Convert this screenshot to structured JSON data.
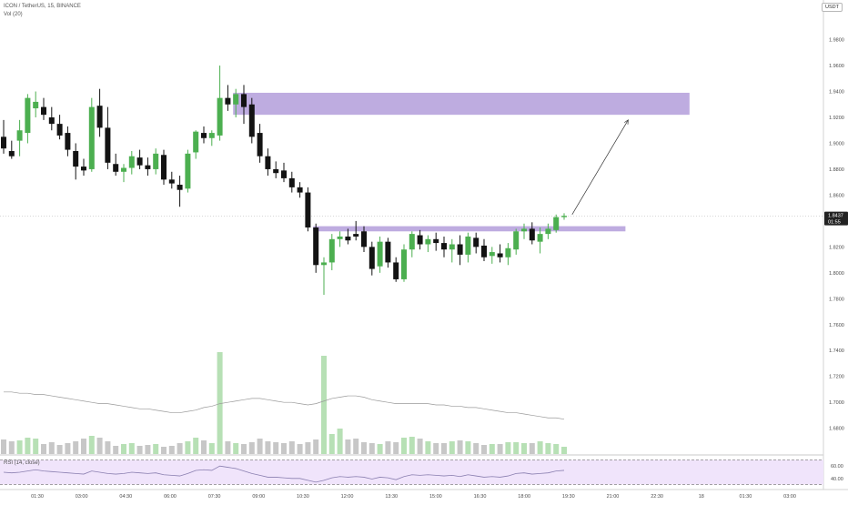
{
  "header": {
    "symbol_line": "ICON / TetherUS, 15, BINANCE",
    "volume_label": "Vol (20)",
    "rsi_label": "RSI (14, close)",
    "currency_badge": "USDT"
  },
  "colors": {
    "up": "#4caf50",
    "down": "#131313",
    "volume_up": "#b7e0b5",
    "volume_down": "#c7c7c7",
    "zone": "#b39ddb",
    "rsi_band": "#f0e4fb",
    "rsi_line": "#8a7fb0",
    "vol_ma": "#9a9a9a"
  },
  "price_axis": {
    "ticks": [
      "1.9800",
      "1.9600",
      "1.9400",
      "1.9200",
      "1.9000",
      "1.8800",
      "1.8600",
      "1.8400",
      "1.8200",
      "1.8000",
      "1.7800",
      "1.7600",
      "1.7400",
      "1.7200",
      "1.7000",
      "1.6800"
    ],
    "last_price": "1.8437",
    "countdown": "01:55"
  },
  "rsi_axis": {
    "ticks": [
      "60.00",
      "40.00"
    ]
  },
  "time_axis": {
    "ticks": [
      "01:30",
      "03:00",
      "04:30",
      "06:00",
      "07:30",
      "09:00",
      "10:30",
      "12:00",
      "13:30",
      "15:00",
      "16:30",
      "18:00",
      "19:30",
      "21:00",
      "22:30",
      "18",
      "01:30",
      "03:00"
    ]
  },
  "chart_data": {
    "type": "candlestick",
    "title": "ICON / TetherUS, 15, BINANCE",
    "interval": "15",
    "ylim": [
      1.665,
      2.005
    ],
    "candles": [
      {
        "o": 1.905,
        "h": 1.918,
        "l": 1.892,
        "c": 1.896
      },
      {
        "o": 1.894,
        "h": 1.902,
        "l": 1.888,
        "c": 1.89
      },
      {
        "o": 1.902,
        "h": 1.918,
        "l": 1.89,
        "c": 1.91
      },
      {
        "o": 1.908,
        "h": 1.938,
        "l": 1.9,
        "c": 1.935
      },
      {
        "o": 1.927,
        "h": 1.94,
        "l": 1.92,
        "c": 1.932
      },
      {
        "o": 1.928,
        "h": 1.935,
        "l": 1.918,
        "c": 1.922
      },
      {
        "o": 1.92,
        "h": 1.928,
        "l": 1.91,
        "c": 1.915
      },
      {
        "o": 1.915,
        "h": 1.922,
        "l": 1.903,
        "c": 1.906
      },
      {
        "o": 1.908,
        "h": 1.913,
        "l": 1.89,
        "c": 1.895
      },
      {
        "o": 1.894,
        "h": 1.9,
        "l": 1.872,
        "c": 1.882
      },
      {
        "o": 1.882,
        "h": 1.888,
        "l": 1.875,
        "c": 1.879
      },
      {
        "o": 1.88,
        "h": 1.935,
        "l": 1.878,
        "c": 1.928
      },
      {
        "o": 1.929,
        "h": 1.942,
        "l": 1.905,
        "c": 1.912
      },
      {
        "o": 1.912,
        "h": 1.928,
        "l": 1.88,
        "c": 1.885
      },
      {
        "o": 1.884,
        "h": 1.892,
        "l": 1.875,
        "c": 1.878
      },
      {
        "o": 1.878,
        "h": 1.884,
        "l": 1.87,
        "c": 1.881
      },
      {
        "o": 1.881,
        "h": 1.894,
        "l": 1.876,
        "c": 1.89
      },
      {
        "o": 1.889,
        "h": 1.895,
        "l": 1.88,
        "c": 1.883
      },
      {
        "o": 1.883,
        "h": 1.889,
        "l": 1.875,
        "c": 1.88
      },
      {
        "o": 1.88,
        "h": 1.896,
        "l": 1.876,
        "c": 1.892
      },
      {
        "o": 1.891,
        "h": 1.895,
        "l": 1.868,
        "c": 1.872
      },
      {
        "o": 1.872,
        "h": 1.878,
        "l": 1.865,
        "c": 1.869
      },
      {
        "o": 1.868,
        "h": 1.875,
        "l": 1.851,
        "c": 1.864
      },
      {
        "o": 1.865,
        "h": 1.895,
        "l": 1.862,
        "c": 1.892
      },
      {
        "o": 1.893,
        "h": 1.91,
        "l": 1.888,
        "c": 1.909
      },
      {
        "o": 1.908,
        "h": 1.913,
        "l": 1.9,
        "c": 1.904
      },
      {
        "o": 1.904,
        "h": 1.91,
        "l": 1.898,
        "c": 1.908
      },
      {
        "o": 1.906,
        "h": 1.96,
        "l": 1.902,
        "c": 1.935
      },
      {
        "o": 1.935,
        "h": 1.945,
        "l": 1.925,
        "c": 1.93
      },
      {
        "o": 1.93,
        "h": 1.942,
        "l": 1.92,
        "c": 1.938
      },
      {
        "o": 1.938,
        "h": 1.945,
        "l": 1.915,
        "c": 1.928
      },
      {
        "o": 1.93,
        "h": 1.935,
        "l": 1.9,
        "c": 1.905
      },
      {
        "o": 1.908,
        "h": 1.915,
        "l": 1.885,
        "c": 1.89
      },
      {
        "o": 1.89,
        "h": 1.896,
        "l": 1.875,
        "c": 1.88
      },
      {
        "o": 1.88,
        "h": 1.886,
        "l": 1.873,
        "c": 1.877
      },
      {
        "o": 1.879,
        "h": 1.885,
        "l": 1.87,
        "c": 1.873
      },
      {
        "o": 1.873,
        "h": 1.878,
        "l": 1.862,
        "c": 1.866
      },
      {
        "o": 1.866,
        "h": 1.87,
        "l": 1.858,
        "c": 1.862
      },
      {
        "o": 1.862,
        "h": 1.866,
        "l": 1.832,
        "c": 1.835
      },
      {
        "o": 1.835,
        "h": 1.838,
        "l": 1.8,
        "c": 1.806
      },
      {
        "o": 1.806,
        "h": 1.812,
        "l": 1.783,
        "c": 1.808
      },
      {
        "o": 1.808,
        "h": 1.83,
        "l": 1.802,
        "c": 1.826
      },
      {
        "o": 1.826,
        "h": 1.832,
        "l": 1.82,
        "c": 1.828
      },
      {
        "o": 1.828,
        "h": 1.834,
        "l": 1.822,
        "c": 1.825
      },
      {
        "o": 1.83,
        "h": 1.84,
        "l": 1.825,
        "c": 1.828
      },
      {
        "o": 1.832,
        "h": 1.836,
        "l": 1.816,
        "c": 1.82
      },
      {
        "o": 1.82,
        "h": 1.824,
        "l": 1.798,
        "c": 1.803
      },
      {
        "o": 1.805,
        "h": 1.828,
        "l": 1.8,
        "c": 1.824
      },
      {
        "o": 1.824,
        "h": 1.827,
        "l": 1.804,
        "c": 1.808
      },
      {
        "o": 1.808,
        "h": 1.812,
        "l": 1.793,
        "c": 1.795
      },
      {
        "o": 1.795,
        "h": 1.822,
        "l": 1.793,
        "c": 1.818
      },
      {
        "o": 1.818,
        "h": 1.832,
        "l": 1.812,
        "c": 1.83
      },
      {
        "o": 1.829,
        "h": 1.833,
        "l": 1.818,
        "c": 1.822
      },
      {
        "o": 1.822,
        "h": 1.829,
        "l": 1.816,
        "c": 1.826
      },
      {
        "o": 1.826,
        "h": 1.831,
        "l": 1.817,
        "c": 1.823
      },
      {
        "o": 1.823,
        "h": 1.828,
        "l": 1.812,
        "c": 1.818
      },
      {
        "o": 1.818,
        "h": 1.826,
        "l": 1.808,
        "c": 1.822
      },
      {
        "o": 1.822,
        "h": 1.829,
        "l": 1.806,
        "c": 1.814
      },
      {
        "o": 1.814,
        "h": 1.831,
        "l": 1.808,
        "c": 1.828
      },
      {
        "o": 1.827,
        "h": 1.831,
        "l": 1.815,
        "c": 1.82
      },
      {
        "o": 1.821,
        "h": 1.826,
        "l": 1.809,
        "c": 1.812
      },
      {
        "o": 1.813,
        "h": 1.82,
        "l": 1.807,
        "c": 1.816
      },
      {
        "o": 1.815,
        "h": 1.822,
        "l": 1.808,
        "c": 1.812
      },
      {
        "o": 1.812,
        "h": 1.823,
        "l": 1.806,
        "c": 1.819
      },
      {
        "o": 1.818,
        "h": 1.834,
        "l": 1.814,
        "c": 1.832
      },
      {
        "o": 1.832,
        "h": 1.838,
        "l": 1.826,
        "c": 1.834
      },
      {
        "o": 1.834,
        "h": 1.839,
        "l": 1.822,
        "c": 1.825
      },
      {
        "o": 1.824,
        "h": 1.835,
        "l": 1.815,
        "c": 1.83
      },
      {
        "o": 1.83,
        "h": 1.838,
        "l": 1.826,
        "c": 1.834
      },
      {
        "o": 1.833,
        "h": 1.845,
        "l": 1.831,
        "c": 1.843
      },
      {
        "o": 1.843,
        "h": 1.846,
        "l": 1.841,
        "c": 1.844
      }
    ],
    "volume_ma": [
      1.708,
      1.708,
      1.707,
      1.707,
      1.706,
      1.706,
      1.705,
      1.704,
      1.703,
      1.702,
      1.701,
      1.7,
      1.699,
      1.699,
      1.698,
      1.697,
      1.696,
      1.695,
      1.695,
      1.694,
      1.693,
      1.692,
      1.692,
      1.693,
      1.694,
      1.696,
      1.697,
      1.699,
      1.7,
      1.701,
      1.702,
      1.703,
      1.703,
      1.702,
      1.701,
      1.7,
      1.7,
      1.699,
      1.698,
      1.699,
      1.701,
      1.703,
      1.704,
      1.705,
      1.705,
      1.704,
      1.702,
      1.701,
      1.7,
      1.699,
      1.699,
      1.699,
      1.699,
      1.699,
      1.698,
      1.698,
      1.697,
      1.697,
      1.696,
      1.696,
      1.695,
      1.694,
      1.693,
      1.692,
      1.692,
      1.691,
      1.69,
      1.689,
      1.688,
      1.688,
      1.687
    ],
    "volume_heights": [
      16,
      14,
      15,
      18,
      17,
      11,
      13,
      10,
      12,
      14,
      17,
      20,
      18,
      14,
      9,
      11,
      12,
      9,
      10,
      11,
      8,
      9,
      12,
      14,
      18,
      15,
      12,
      21,
      14,
      12,
      11,
      13,
      17,
      14,
      13,
      12,
      14,
      11,
      13,
      16,
      34,
      22,
      28,
      16,
      17,
      13,
      12,
      11,
      14,
      13,
      18,
      19,
      17,
      14,
      12,
      12,
      14,
      15,
      14,
      12,
      10,
      11,
      11,
      13,
      13,
      12,
      12,
      14,
      12,
      11,
      8
    ],
    "volume_tall_bars": [
      {
        "i": 27,
        "h": 112
      },
      {
        "i": 40,
        "h": 108
      }
    ],
    "rsi": [
      50,
      49,
      50,
      52,
      54,
      52,
      51,
      50,
      49,
      48,
      47,
      52,
      50,
      48,
      47,
      48,
      50,
      49,
      48,
      49,
      46,
      45,
      44,
      48,
      53,
      54,
      53,
      60,
      58,
      56,
      52,
      48,
      45,
      42,
      42,
      41,
      40,
      40,
      37,
      34,
      37,
      41,
      43,
      42,
      43,
      42,
      39,
      42,
      41,
      38,
      43,
      46,
      45,
      46,
      45,
      44,
      45,
      43,
      46,
      44,
      42,
      43,
      42,
      44,
      48,
      49,
      47,
      48,
      49,
      52,
      53
    ],
    "rsi_levels": {
      "upper": 70,
      "middle": 50,
      "lower": 30
    },
    "zones": [
      {
        "from_index": 29,
        "to_index": 86,
        "top": 1.939,
        "bottom": 1.922
      },
      {
        "from_index": 39,
        "to_index": 78,
        "top": 1.836,
        "bottom": 1.832
      }
    ],
    "projection": {
      "from_index": 71,
      "from_price": 1.845,
      "to_index": 78,
      "to_price": 1.918
    },
    "last_price": 1.8437
  }
}
